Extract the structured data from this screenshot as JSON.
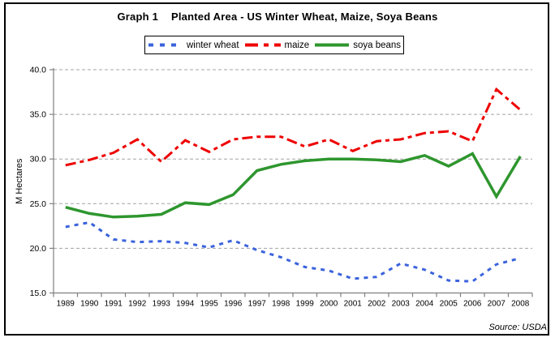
{
  "title": {
    "prefix": "Graph 1",
    "text": "Planted Area - US Winter Wheat, Maize, Soya Beans"
  },
  "source_note": "Source: USDA",
  "colors": {
    "axis": "#808080",
    "grid": "#a3a3a3",
    "winter_wheat": "#3b63dc",
    "maize": "#ee0000",
    "soya_beans": "#2e962e"
  },
  "chart_data": {
    "type": "line",
    "title": "Graph 1  Planted Area - US Winter Wheat, Maize, Soya Beans",
    "xlabel": "",
    "ylabel": "M Hectares",
    "ylim": [
      15,
      40
    ],
    "ytick_labels": [
      "15.0",
      "20.0",
      "25.0",
      "30.0",
      "35.0",
      "40.0"
    ],
    "grid": "horizontal-dashed",
    "legend_position": "top-center",
    "categories": [
      "1989",
      "1990",
      "1991",
      "1992",
      "1993",
      "1994",
      "1995",
      "1996",
      "1997",
      "1998",
      "1999",
      "2000",
      "2001",
      "2002",
      "2003",
      "2004",
      "2005",
      "2006",
      "2007",
      "2008"
    ],
    "series": [
      {
        "name": "winter wheat",
        "color": "#3b63dc",
        "style": "dashed",
        "values": [
          22.4,
          22.9,
          21.0,
          20.7,
          20.8,
          20.6,
          20.1,
          20.9,
          19.8,
          19.0,
          17.9,
          17.5,
          16.6,
          16.8,
          18.3,
          17.6,
          16.4,
          16.3,
          18.2,
          18.9
        ]
      },
      {
        "name": "maize",
        "color": "#ee0000",
        "style": "dash-dot",
        "values": [
          29.3,
          29.9,
          30.7,
          32.2,
          29.7,
          32.1,
          30.8,
          32.2,
          32.5,
          32.5,
          31.4,
          32.2,
          30.9,
          32.0,
          32.2,
          32.9,
          33.1,
          32.0,
          37.8,
          35.5
        ]
      },
      {
        "name": "soya beans",
        "color": "#2e962e",
        "style": "solid",
        "values": [
          24.6,
          23.9,
          23.5,
          23.6,
          23.8,
          25.1,
          24.9,
          26.0,
          28.7,
          29.4,
          29.8,
          30.0,
          30.0,
          29.9,
          29.7,
          30.4,
          29.2,
          30.6,
          25.8,
          30.3
        ]
      }
    ]
  }
}
